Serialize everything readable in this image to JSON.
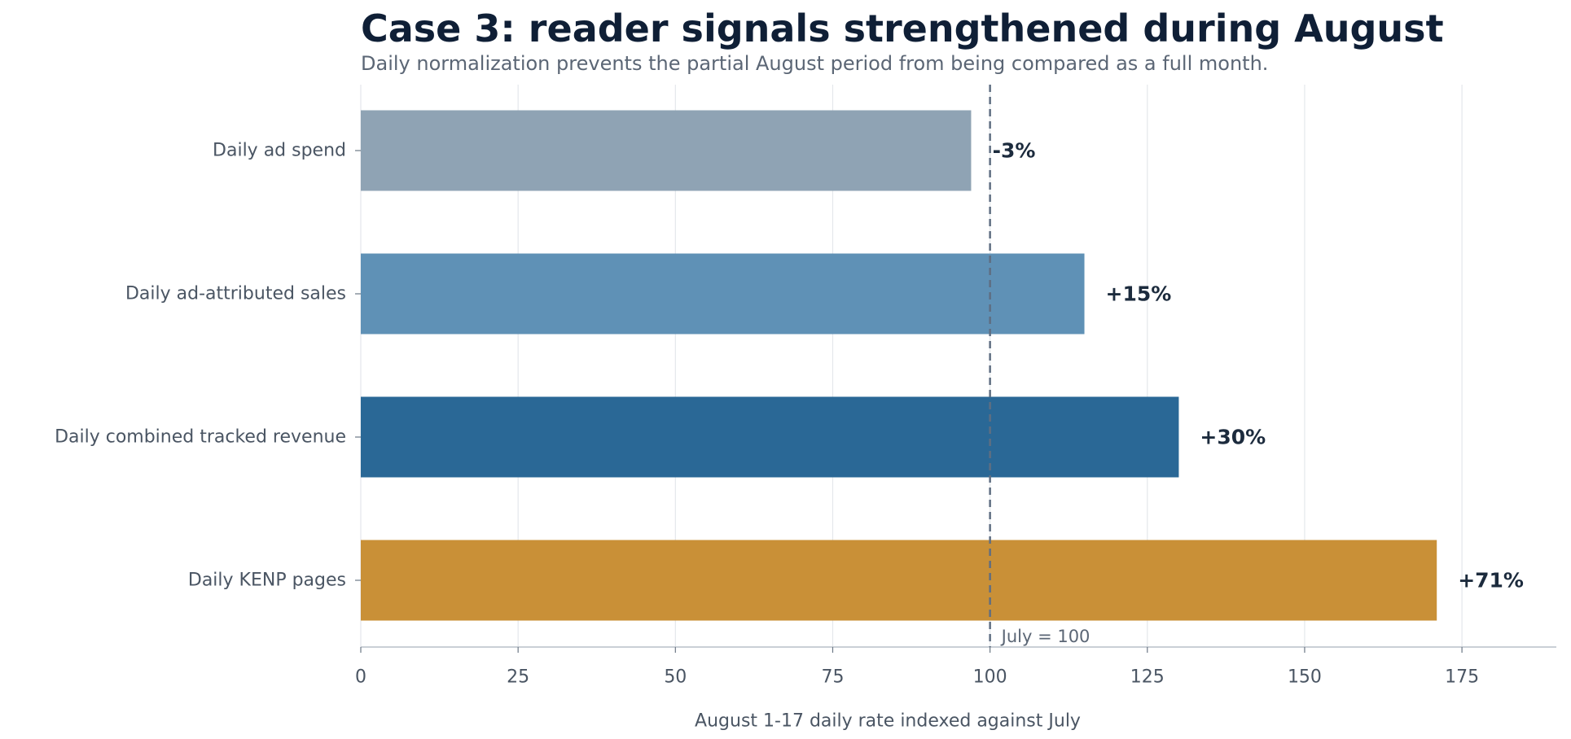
{
  "chart_data": {
    "type": "bar",
    "orientation": "horizontal",
    "title": "Case 3: reader signals strengthened during August",
    "subtitle": "Daily normalization prevents the partial August period from being compared as a full month.",
    "xlabel": "August 1-17 daily rate indexed against July",
    "ylabel": "",
    "xlim": [
      0,
      190
    ],
    "xticks": [
      0,
      25,
      50,
      75,
      100,
      125,
      150,
      175
    ],
    "grid": "vertical",
    "reference_line": {
      "value": 100,
      "label": "July = 100",
      "style": "dashed"
    },
    "categories": [
      "Daily ad spend",
      "Daily ad-attributed sales",
      "Daily combined tracked revenue",
      "Daily KENP pages"
    ],
    "values": [
      97,
      115,
      130,
      171
    ],
    "labels": [
      "-3%",
      "+15%",
      "+30%",
      "+71%"
    ],
    "colors": [
      "#8fa3b4",
      "#5f91b6",
      "#2a6896",
      "#c99037"
    ]
  }
}
